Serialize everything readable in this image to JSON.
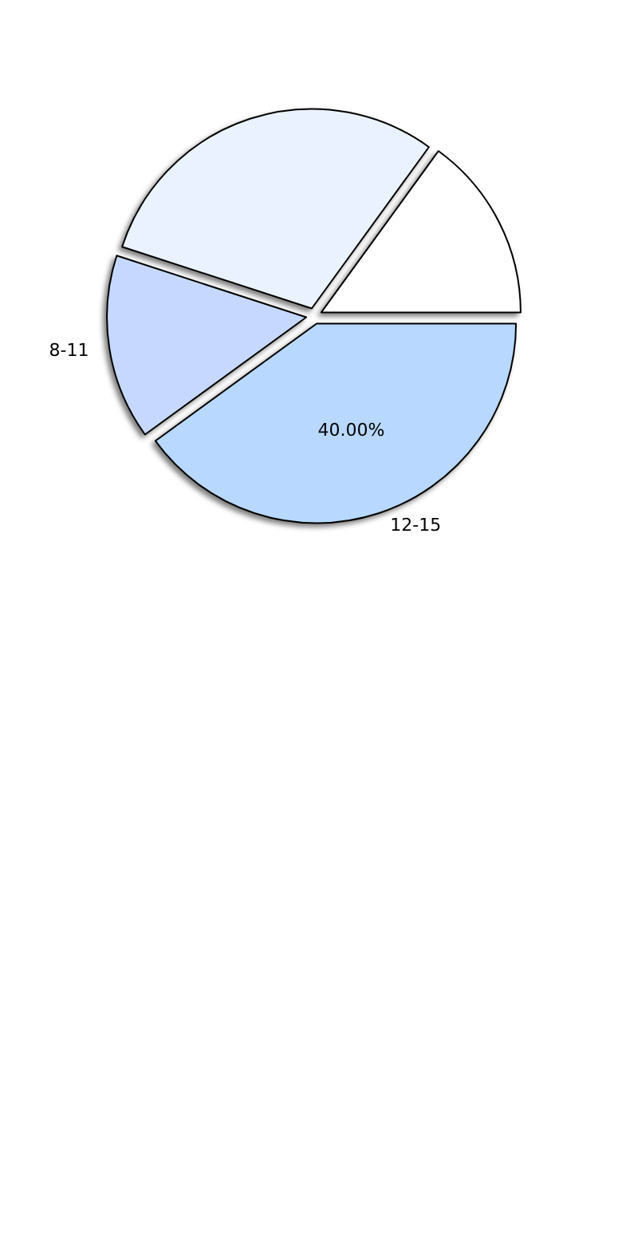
{
  "chart_data": {
    "type": "pie",
    "categories": [
      "12-15",
      "8-11",
      null,
      null
    ],
    "values": [
      40,
      15,
      30,
      15
    ],
    "colors": [
      "#b8d8ff",
      "#c6d8ff",
      "#eaf2ff",
      "#ffffff"
    ],
    "value_labels": [
      "40.00%",
      null,
      null,
      null
    ],
    "legend": false
  }
}
